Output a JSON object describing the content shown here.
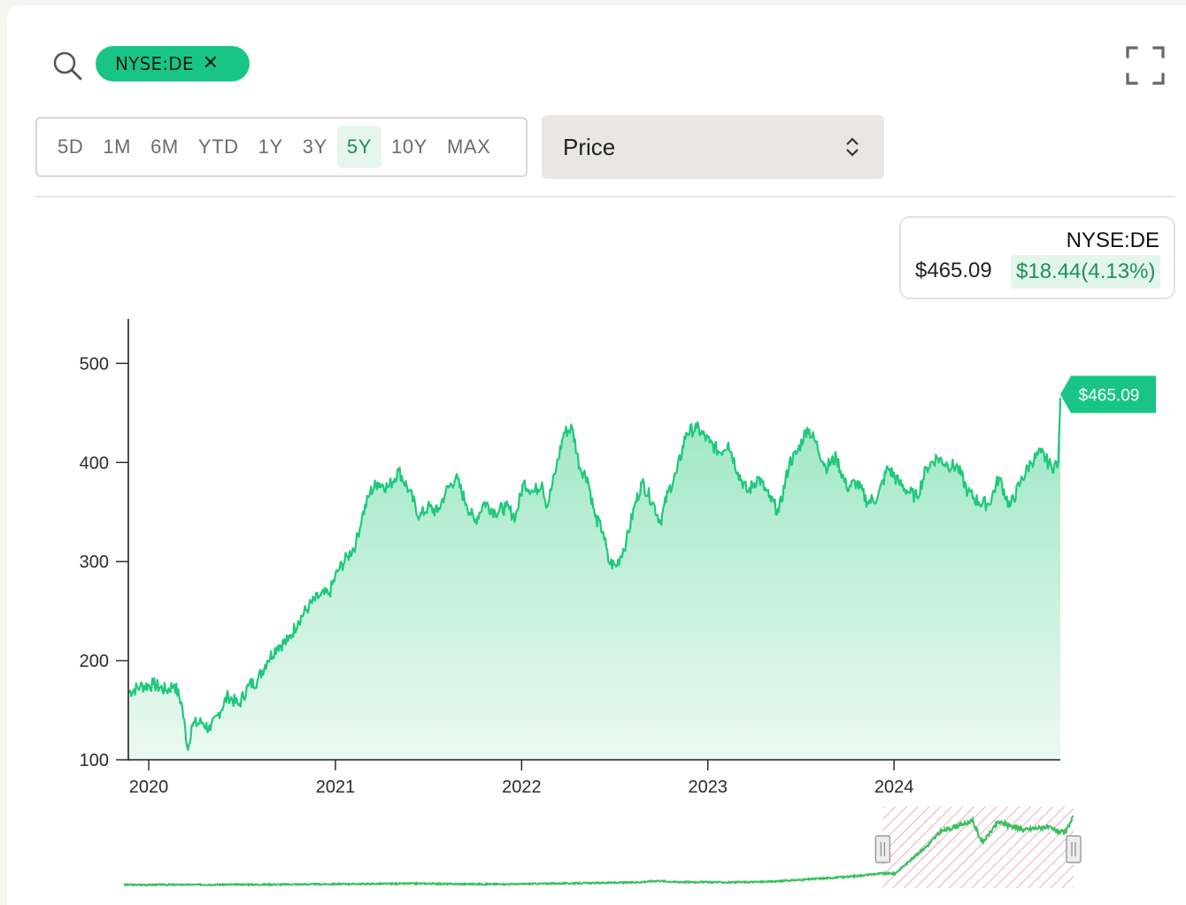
{
  "search": {
    "icon": "search-icon"
  },
  "chip": {
    "label": "NYSE:DE",
    "close": "✕"
  },
  "fullscreen": {
    "icon": "fullscreen-icon"
  },
  "ranges": {
    "items": [
      "5D",
      "1M",
      "6M",
      "YTD",
      "1Y",
      "3Y",
      "5Y",
      "10Y",
      "MAX"
    ],
    "active": "5Y"
  },
  "metric_select": {
    "value": "Price"
  },
  "tooltip": {
    "ticker": "NYSE:DE",
    "price": "$465.09",
    "change": "$18.44(4.13%)"
  },
  "colors": {
    "accent": "#19c586",
    "line": "#1ec97b",
    "change_bg": "#e3f6ed",
    "change_text": "#1f8f5e",
    "navigator_line": "#34c05a",
    "navigator_hatch": "#f2a9bd"
  },
  "chart_data": {
    "type": "area",
    "series": [
      {
        "points": [
          [
            "2019-11-22",
            168
          ],
          [
            "2019-12-15",
            174
          ],
          [
            "2020-01-10",
            176
          ],
          [
            "2020-02-05",
            170
          ],
          [
            "2020-02-20",
            176
          ],
          [
            "2020-03-05",
            158
          ],
          [
            "2020-03-18",
            110
          ],
          [
            "2020-03-25",
            135
          ],
          [
            "2020-04-15",
            138
          ],
          [
            "2020-05-01",
            130
          ],
          [
            "2020-05-15",
            145
          ],
          [
            "2020-06-05",
            165
          ],
          [
            "2020-06-25",
            155
          ],
          [
            "2020-07-15",
            175
          ],
          [
            "2020-08-01",
            180
          ],
          [
            "2020-08-20",
            200
          ],
          [
            "2020-09-10",
            215
          ],
          [
            "2020-09-30",
            220
          ],
          [
            "2020-10-20",
            240
          ],
          [
            "2020-11-10",
            255
          ],
          [
            "2020-11-30",
            265
          ],
          [
            "2020-12-20",
            268
          ],
          [
            "2021-01-05",
            290
          ],
          [
            "2021-01-25",
            305
          ],
          [
            "2021-02-10",
            318
          ],
          [
            "2021-02-22",
            345
          ],
          [
            "2021-03-10",
            370
          ],
          [
            "2021-03-25",
            380
          ],
          [
            "2021-04-15",
            375
          ],
          [
            "2021-05-05",
            392
          ],
          [
            "2021-05-25",
            372
          ],
          [
            "2021-06-15",
            345
          ],
          [
            "2021-07-01",
            355
          ],
          [
            "2021-07-20",
            350
          ],
          [
            "2021-08-05",
            370
          ],
          [
            "2021-08-25",
            385
          ],
          [
            "2021-09-15",
            358
          ],
          [
            "2021-10-01",
            340
          ],
          [
            "2021-10-20",
            360
          ],
          [
            "2021-11-10",
            350
          ],
          [
            "2021-12-01",
            355
          ],
          [
            "2021-12-20",
            345
          ],
          [
            "2022-01-05",
            380
          ],
          [
            "2022-01-25",
            370
          ],
          [
            "2022-02-10",
            380
          ],
          [
            "2022-02-20",
            355
          ],
          [
            "2022-03-10",
            395
          ],
          [
            "2022-03-25",
            430
          ],
          [
            "2022-04-10",
            435
          ],
          [
            "2022-04-25",
            395
          ],
          [
            "2022-05-10",
            385
          ],
          [
            "2022-05-25",
            345
          ],
          [
            "2022-06-10",
            330
          ],
          [
            "2022-06-20",
            300
          ],
          [
            "2022-07-05",
            295
          ],
          [
            "2022-07-25",
            320
          ],
          [
            "2022-08-10",
            355
          ],
          [
            "2022-08-25",
            380
          ],
          [
            "2022-09-15",
            360
          ],
          [
            "2022-09-30",
            340
          ],
          [
            "2022-10-15",
            370
          ],
          [
            "2022-11-01",
            390
          ],
          [
            "2022-11-20",
            430
          ],
          [
            "2022-12-10",
            435
          ],
          [
            "2023-01-05",
            420
          ],
          [
            "2023-01-25",
            410
          ],
          [
            "2023-02-10",
            420
          ],
          [
            "2023-03-01",
            390
          ],
          [
            "2023-03-20",
            370
          ],
          [
            "2023-04-10",
            385
          ],
          [
            "2023-05-01",
            365
          ],
          [
            "2023-05-20",
            350
          ],
          [
            "2023-06-10",
            400
          ],
          [
            "2023-06-25",
            410
          ],
          [
            "2023-07-15",
            435
          ],
          [
            "2023-08-01",
            420
          ],
          [
            "2023-08-20",
            395
          ],
          [
            "2023-09-10",
            405
          ],
          [
            "2023-09-30",
            375
          ],
          [
            "2023-10-20",
            380
          ],
          [
            "2023-11-10",
            360
          ],
          [
            "2023-11-30",
            365
          ],
          [
            "2023-12-20",
            395
          ],
          [
            "2024-01-10",
            380
          ],
          [
            "2024-01-30",
            370
          ],
          [
            "2024-02-15",
            365
          ],
          [
            "2024-03-05",
            395
          ],
          [
            "2024-03-25",
            405
          ],
          [
            "2024-04-15",
            398
          ],
          [
            "2024-05-05",
            395
          ],
          [
            "2024-05-25",
            370
          ],
          [
            "2024-06-15",
            360
          ],
          [
            "2024-07-05",
            358
          ],
          [
            "2024-07-25",
            385
          ],
          [
            "2024-08-15",
            355
          ],
          [
            "2024-09-05",
            380
          ],
          [
            "2024-09-25",
            400
          ],
          [
            "2024-10-15",
            410
          ],
          [
            "2024-11-05",
            395
          ],
          [
            "2024-11-18",
            400
          ],
          [
            "2024-11-21",
            446
          ],
          [
            "2024-11-22",
            465.09
          ]
        ]
      }
    ],
    "xticks": [
      "2020",
      "2021",
      "2022",
      "2023",
      "2024"
    ],
    "yticks": [
      100,
      200,
      300,
      400,
      500
    ],
    "ylim": [
      100,
      545
    ],
    "last_value_label": "$465.09",
    "navigator": {
      "selected_range": "5Y",
      "points": [
        [
          "2000-01-01",
          40
        ],
        [
          "2004-01-01",
          42
        ],
        [
          "2007-12-01",
          48
        ],
        [
          "2008-06-01",
          45
        ],
        [
          "2010-01-01",
          44
        ],
        [
          "2012-01-01",
          50
        ],
        [
          "2013-06-01",
          55
        ],
        [
          "2014-01-01",
          65
        ],
        [
          "2014-06-01",
          58
        ],
        [
          "2016-01-01",
          55
        ],
        [
          "2017-01-01",
          60
        ],
        [
          "2018-01-01",
          75
        ],
        [
          "2019-01-01",
          90
        ],
        [
          "2019-11-01",
          110
        ],
        [
          "2020-03-18",
          110
        ],
        [
          "2021-01-01",
          270
        ],
        [
          "2021-06-01",
          370
        ],
        [
          "2022-04-01",
          435
        ],
        [
          "2022-07-01",
          300
        ],
        [
          "2022-12-01",
          430
        ],
        [
          "2023-08-01",
          380
        ],
        [
          "2024-03-01",
          400
        ],
        [
          "2024-09-01",
          360
        ],
        [
          "2024-11-22",
          465.09
        ]
      ]
    }
  }
}
